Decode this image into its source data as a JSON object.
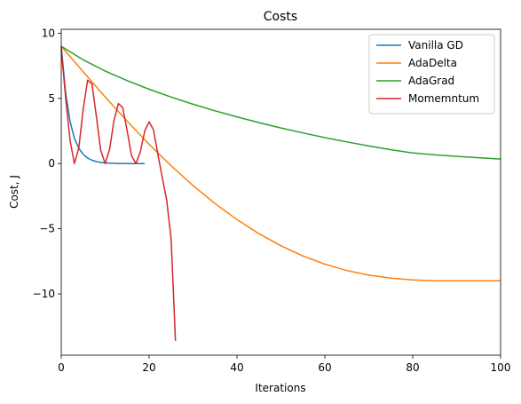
{
  "chart_data": {
    "type": "line",
    "title": "Costs",
    "xlabel": "Iterations",
    "ylabel": "Cost, J",
    "xlim": [
      0,
      100
    ],
    "ylim": [
      -14.7,
      10.3
    ],
    "xticks": [
      0,
      20,
      40,
      60,
      80,
      100
    ],
    "xtick_labels": [
      "0",
      "20",
      "40",
      "60",
      "80",
      "100"
    ],
    "yticks": [
      -10,
      -5,
      0,
      5,
      10
    ],
    "ytick_labels": [
      "−10",
      "−5",
      "0",
      "5",
      "10"
    ],
    "grid": false,
    "legend_position": "top-right",
    "series": [
      {
        "name": "Vanilla GD",
        "color": "#1f77b4",
        "x": [
          0,
          1,
          2,
          3,
          4,
          5,
          6,
          7,
          8,
          9,
          10,
          11,
          12,
          13,
          14,
          15,
          16,
          17,
          18,
          19
        ],
        "y": [
          9.0,
          5.4,
          3.24,
          1.94,
          1.17,
          0.7,
          0.42,
          0.25,
          0.15,
          0.09,
          0.05,
          0.03,
          0.02,
          0.01,
          0.01,
          0.0,
          0.0,
          0.0,
          0.0,
          0.0
        ]
      },
      {
        "name": "AdaDelta",
        "color": "#ff7f0e",
        "x": [
          0,
          5,
          10,
          15,
          20,
          25,
          30,
          35,
          40,
          45,
          50,
          55,
          60,
          65,
          70,
          75,
          80,
          85,
          90,
          95,
          100
        ],
        "y": [
          9.0,
          7.04,
          5.11,
          3.25,
          1.48,
          -0.17,
          -1.69,
          -3.07,
          -4.3,
          -5.38,
          -6.31,
          -7.09,
          -7.72,
          -8.21,
          -8.56,
          -8.79,
          -8.93,
          -8.99,
          -9.0,
          -9.0,
          -9.0
        ]
      },
      {
        "name": "AdaGrad",
        "color": "#2ca02c",
        "x": [
          0,
          5,
          10,
          15,
          20,
          25,
          30,
          35,
          40,
          45,
          50,
          55,
          60,
          65,
          70,
          75,
          80,
          85,
          90,
          95,
          100
        ],
        "y": [
          9.0,
          7.96,
          7.1,
          6.36,
          5.7,
          5.1,
          4.55,
          4.05,
          3.58,
          3.14,
          2.73,
          2.35,
          1.99,
          1.66,
          1.35,
          1.06,
          0.81,
          0.67,
          0.55,
          0.45,
          0.35
        ]
      },
      {
        "name": "Momemntum",
        "color": "#d62728",
        "x": [
          0,
          1,
          2,
          3,
          4,
          5,
          6,
          7,
          8,
          9,
          10,
          11,
          12,
          13,
          14,
          15,
          16,
          17,
          18,
          19,
          20,
          21,
          22,
          23,
          24,
          25,
          26
        ],
        "y": [
          8.8,
          5.0,
          1.8,
          0.0,
          1.2,
          4.2,
          6.4,
          6.1,
          3.6,
          1.0,
          0.0,
          1.1,
          3.3,
          4.6,
          4.3,
          2.5,
          0.6,
          0.0,
          0.9,
          2.5,
          3.2,
          2.6,
          0.7,
          -1.1,
          -2.8,
          -5.8,
          -13.6
        ]
      }
    ]
  }
}
